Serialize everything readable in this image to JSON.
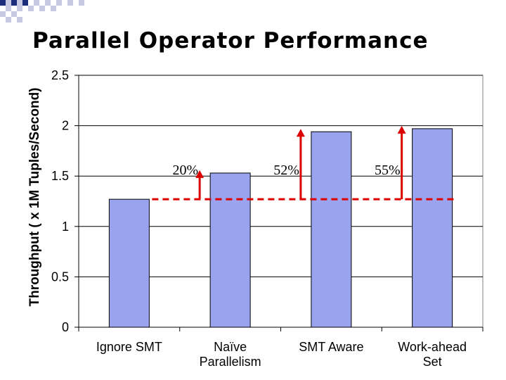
{
  "slide": {
    "title": "Parallel Operator Performance"
  },
  "chart_data": {
    "type": "bar",
    "title": "",
    "xlabel": "",
    "ylabel": "Throughput ( x 1M Tuples/Second)",
    "ylim": [
      0,
      2.5
    ],
    "yticks": [
      0,
      0.5,
      1,
      1.5,
      2,
      2.5
    ],
    "ytick_labels": [
      "0",
      "0.5",
      "1",
      "1.5",
      "2",
      "2.5"
    ],
    "categories": [
      "Ignore SMT",
      "Naïve Parallelism",
      "SMT Aware",
      "Work-ahead Set"
    ],
    "category_lines": [
      [
        "Ignore SMT"
      ],
      [
        "Naïve",
        "Parallelism"
      ],
      [
        "SMT Aware"
      ],
      [
        "Work-ahead",
        "Set"
      ]
    ],
    "values": [
      1.27,
      1.53,
      1.94,
      1.97
    ],
    "grid": true,
    "colors": {
      "bar_fill": "#99a3ee",
      "bar_stroke": "#000000",
      "plot_background": "#ffffff",
      "grid": "#000000",
      "annotation": "#dd0000"
    },
    "baseline": {
      "value": 1.27,
      "style": "dashed"
    },
    "annotations": [
      {
        "text": "20%",
        "category": "Naïve Parallelism"
      },
      {
        "text": "52%",
        "category": "SMT Aware"
      },
      {
        "text": "55%",
        "category": "Work-ahead Set"
      }
    ]
  },
  "decoration": {
    "checker_colors": [
      "#1d2b7d",
      "#c5c9e2"
    ]
  }
}
